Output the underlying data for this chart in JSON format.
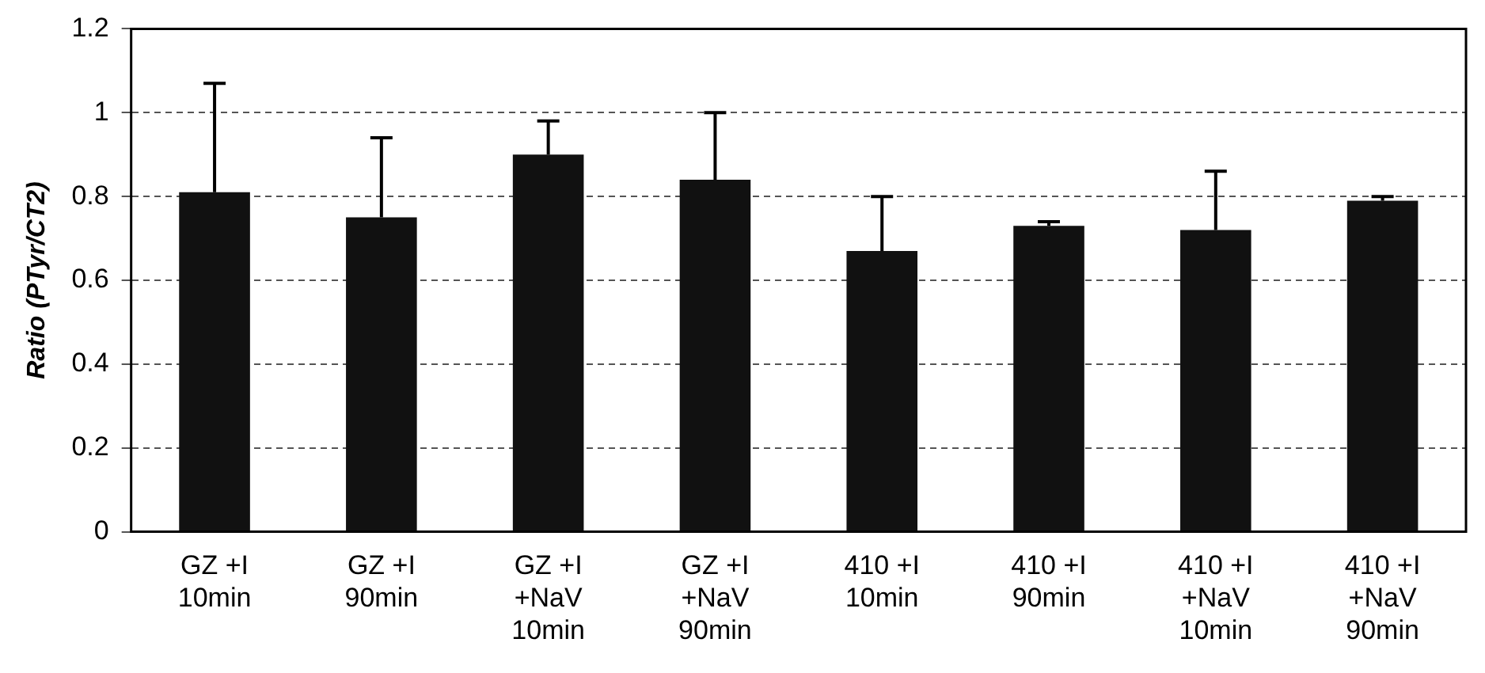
{
  "chart_data": {
    "type": "bar",
    "ylabel": "Ratio (PTyr/CT2)",
    "categories": [
      "GZ +I\n10min",
      "GZ +I\n90min",
      "GZ +I\n+NaV\n10min",
      "GZ +I\n+NaV\n90min",
      "410 +I\n10min",
      "410 +I\n90min",
      "410 +I\n+NaV\n10min",
      "410 +I\n+NaV\n90min"
    ],
    "values": [
      0.81,
      0.75,
      0.9,
      0.84,
      0.67,
      0.73,
      0.72,
      0.79
    ],
    "errors": [
      [
        0.81,
        1.07
      ],
      [
        0.75,
        0.94
      ],
      [
        0.9,
        0.98
      ],
      [
        0.84,
        1.0
      ],
      [
        0.67,
        0.8
      ],
      [
        0.73,
        0.74
      ],
      [
        0.72,
        0.86
      ],
      [
        0.79,
        0.8
      ]
    ],
    "color": "#111111",
    "ylim": [
      0,
      1.2
    ],
    "yticks": [
      0,
      0.2,
      0.4,
      0.6,
      0.8,
      1,
      1.2
    ],
    "grid": "y",
    "legend": false
  }
}
